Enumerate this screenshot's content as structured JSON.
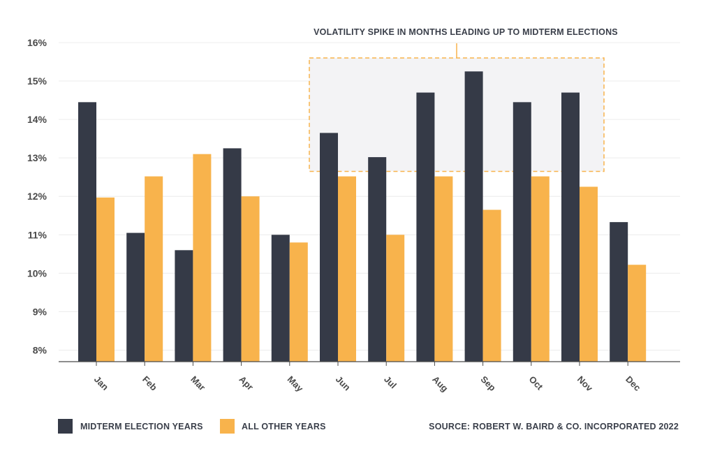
{
  "chart_data": {
    "type": "bar",
    "categories": [
      "Jan",
      "Feb",
      "Mar",
      "Apr",
      "May",
      "Jun",
      "Jul",
      "Aug",
      "Sep",
      "Oct",
      "Nov",
      "Dec"
    ],
    "series": [
      {
        "name": "MIDTERM ELECTION YEARS",
        "color": "#353a47",
        "values": [
          14.45,
          11.05,
          10.6,
          13.25,
          11.0,
          13.65,
          13.02,
          14.7,
          15.25,
          14.45,
          14.7,
          11.33
        ]
      },
      {
        "name": "ALL OTHER YEARS",
        "color": "#f8b34c",
        "values": [
          11.97,
          12.52,
          13.1,
          12.0,
          10.8,
          12.52,
          11.0,
          12.52,
          11.65,
          12.52,
          12.25,
          10.22
        ]
      }
    ],
    "yticks": [
      "16%",
      "15%",
      "14%",
      "13%",
      "12%",
      "11%",
      "10%",
      "9%",
      "8%"
    ],
    "ylim": [
      7.7,
      16
    ],
    "grid": true,
    "annotation": {
      "text": "VOLATILITY SPIKE IN MONTHS LEADING UP TO MIDTERM ELECTIONS",
      "months": [
        "Jun",
        "Jul",
        "Aug",
        "Sep",
        "Oct",
        "Nov"
      ],
      "y_range": [
        12.65,
        15.6
      ]
    },
    "source": "SOURCE: ROBERT W. BAIRD & CO. INCORPORATED 2022",
    "legend_position": "bottom-left"
  }
}
